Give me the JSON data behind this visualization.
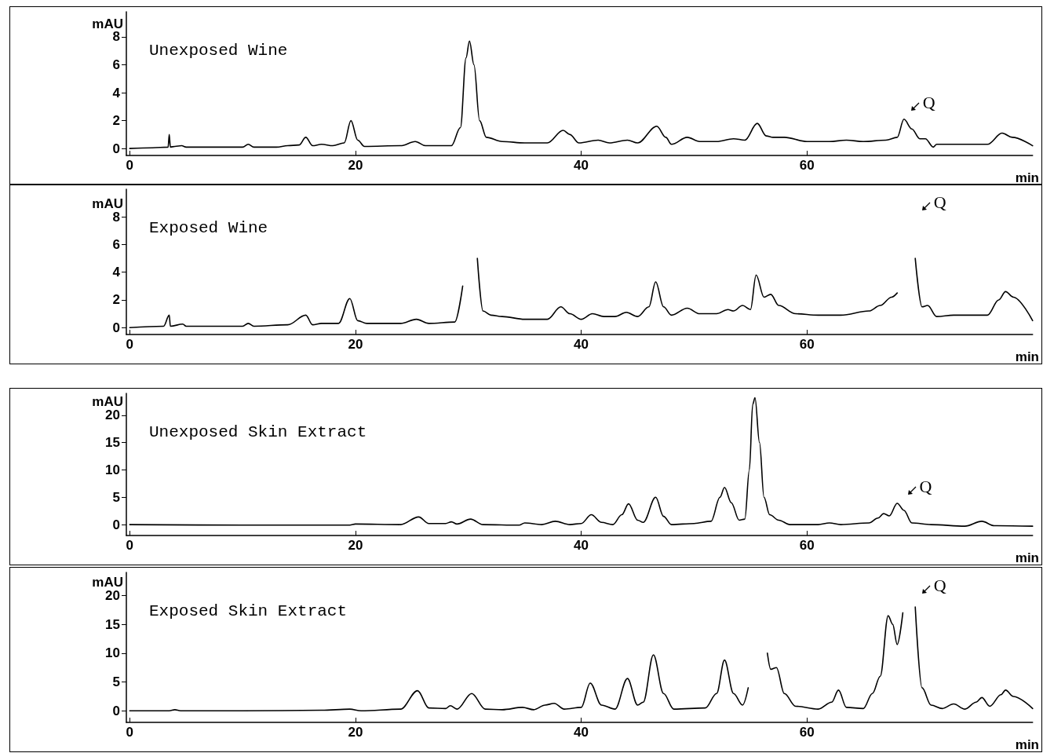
{
  "chart_data": [
    {
      "type": "line",
      "title": "Unexposed Wine",
      "xlabel": "min",
      "ylabel": "mAU",
      "color": "#000000",
      "marker": "none",
      "line_style": "solid",
      "xlim": [
        -0.3,
        80
      ],
      "xticks": [
        0,
        20,
        40,
        60
      ],
      "ylim": [
        -0.5,
        9.8
      ],
      "yticks": [
        0,
        2,
        4,
        6,
        8
      ],
      "x": [
        0,
        2,
        3.4,
        3.5,
        3.6,
        4,
        4.6,
        5,
        8,
        10,
        10.5,
        11,
        13,
        14,
        15,
        15.6,
        16.2,
        17,
        18,
        19,
        19.6,
        20.2,
        20.8,
        24,
        25.3,
        26.2,
        28.5,
        29.3,
        29.8,
        30.1,
        30.5,
        31,
        31.6,
        33,
        35,
        37,
        38.4,
        39,
        39.8,
        41.5,
        42.5,
        44.1,
        45,
        46.7,
        47.5,
        48,
        49.4,
        50.5,
        52,
        53.5,
        54.5,
        55.6,
        56.4,
        57,
        58,
        60,
        62,
        63.5,
        65,
        67,
        68,
        68.6,
        69.3,
        70,
        70.5,
        71.2,
        71.5,
        74,
        76,
        77.3,
        78.2,
        80
      ],
      "values": [
        0,
        0.05,
        0.1,
        1.0,
        0.1,
        0.15,
        0.2,
        0.1,
        0.1,
        0.1,
        0.3,
        0.1,
        0.1,
        0.2,
        0.25,
        0.8,
        0.2,
        0.3,
        0.2,
        0.4,
        2.0,
        0.6,
        0.15,
        0.2,
        0.5,
        0.2,
        0.2,
        1.5,
        6.5,
        7.7,
        6.0,
        2.0,
        0.8,
        0.5,
        0.4,
        0.4,
        1.3,
        1.0,
        0.4,
        0.6,
        0.4,
        0.6,
        0.4,
        1.6,
        0.8,
        0.3,
        0.8,
        0.5,
        0.5,
        0.7,
        0.6,
        1.8,
        0.9,
        0.8,
        0.8,
        0.5,
        0.5,
        0.6,
        0.5,
        0.6,
        0.8,
        2.1,
        1.4,
        0.7,
        0.7,
        0.1,
        0.3,
        0.3,
        0.3,
        1.1,
        0.8,
        0.2
      ],
      "annotations": [
        {
          "text": "Q",
          "x": 68.6,
          "y": 2.1
        }
      ]
    },
    {
      "type": "line",
      "title": "Exposed Wine",
      "xlabel": "min",
      "ylabel": "mAU",
      "color": "#000000",
      "marker": "none",
      "line_style": "solid",
      "xlim": [
        -0.3,
        80
      ],
      "xticks": [
        0,
        20,
        40,
        60
      ],
      "ylim": [
        -0.5,
        10
      ],
      "yticks": [
        0,
        2,
        4,
        6,
        8
      ],
      "x": [
        0,
        3,
        3.5,
        3.6,
        4.7,
        5,
        10,
        10.5,
        11,
        14,
        15.6,
        16.2,
        17,
        18.5,
        19.5,
        20.2,
        21,
        24,
        25.4,
        26.5,
        28.8,
        29.5,
        29.9,
        30.4,
        30.8,
        31.3,
        32,
        33,
        35,
        37,
        38.2,
        39,
        40,
        41,
        42,
        43,
        44,
        45,
        46,
        46.6,
        47.3,
        48,
        49.4,
        50.5,
        52,
        53,
        53.5,
        54.3,
        55,
        55.5,
        56.2,
        56.8,
        57.5,
        59,
        61,
        63,
        65.5,
        66.5,
        67.5,
        68,
        68.5,
        69.2,
        69.6,
        70.2,
        70.7,
        71.5,
        73,
        76,
        77,
        77.6,
        78.3,
        80
      ],
      "values": [
        0,
        0.1,
        0.9,
        0.1,
        0.25,
        0.1,
        0.1,
        0.3,
        0.1,
        0.2,
        0.9,
        0.2,
        0.3,
        0.3,
        2.1,
        0.5,
        0.3,
        0.3,
        0.6,
        0.3,
        0.4,
        3,
        null,
        null,
        5,
        1.2,
        0.9,
        0.8,
        0.6,
        0.6,
        1.5,
        1.0,
        0.6,
        1.0,
        0.8,
        0.8,
        1.1,
        0.8,
        1.5,
        3.3,
        1.5,
        0.9,
        1.4,
        1.0,
        1.0,
        1.3,
        1.2,
        1.6,
        1.3,
        3.8,
        2.2,
        2.4,
        1.6,
        1.0,
        0.9,
        0.9,
        1.2,
        1.6,
        2.2,
        2.5,
        null,
        null,
        5,
        1.5,
        1.6,
        0.8,
        0.9,
        0.9,
        2.0,
        2.6,
        2.2,
        0.5
      ],
      "annotations": [
        "Q"
      ]
    },
    {
      "type": "line",
      "title": "Unexposed Skin Extract",
      "xlabel": "min",
      "ylabel": "mAU",
      "color": "#000000",
      "marker": "none",
      "line_style": "solid",
      "xlim": [
        -0.3,
        80
      ],
      "xticks": [
        0,
        20,
        40,
        60
      ],
      "ylim": [
        -2,
        24
      ],
      "yticks": [
        0,
        5,
        10,
        15,
        20
      ],
      "x": [
        0,
        10,
        19.5,
        20,
        24,
        25.6,
        26.5,
        28,
        28.5,
        29,
        30.2,
        31.3,
        34.5,
        35,
        36.5,
        37.7,
        39,
        40,
        40.9,
        41.8,
        42.8,
        43.6,
        44.2,
        45,
        45.5,
        46.6,
        47.3,
        48,
        50,
        51.5,
        52.3,
        52.7,
        53.3,
        54,
        54.5,
        54.9,
        55.2,
        55.4,
        55.8,
        56.2,
        56.7,
        57.5,
        58.5,
        61,
        62,
        63,
        65.5,
        66.3,
        66.8,
        67.3,
        68,
        68.6,
        69.3,
        71,
        74,
        75.5,
        76.6,
        80
      ],
      "values": [
        0,
        -0.1,
        -0.1,
        0.1,
        0,
        1.4,
        0.2,
        0.2,
        0.5,
        0.1,
        1.0,
        0,
        -0.1,
        0.3,
        0,
        0.6,
        0,
        0.2,
        1.8,
        0.4,
        0,
        1.8,
        3.8,
        0.8,
        0.4,
        5.0,
        1.5,
        0,
        0.2,
        0.6,
        5,
        6.8,
        4,
        0.8,
        1,
        10,
        22,
        23.2,
        15,
        5,
        1.8,
        0.8,
        0,
        0,
        0.3,
        0,
        0.3,
        1.2,
        2.0,
        1.6,
        3.9,
        2.6,
        0.3,
        0,
        -0.3,
        0.6,
        -0.2,
        -0.3
      ],
      "annotations": [
        {
          "text": "Q",
          "x": 68.3,
          "y": 3.9
        }
      ]
    },
    {
      "type": "line",
      "title": "Exposed Skin Extract",
      "xlabel": "min",
      "ylabel": "mAU",
      "color": "#000000",
      "marker": "none",
      "line_style": "solid",
      "xlim": [
        -0.3,
        80
      ],
      "xticks": [
        0,
        20,
        40,
        60
      ],
      "ylim": [
        -2,
        24
      ],
      "yticks": [
        0,
        5,
        10,
        15,
        20
      ],
      "x": [
        0,
        3.5,
        4,
        4.5,
        10,
        17,
        19.5,
        20.5,
        24,
        25.5,
        26.5,
        28,
        28.4,
        29,
        30.3,
        31.5,
        33,
        34.8,
        35.8,
        36.8,
        37.6,
        38.5,
        40,
        40.8,
        41.8,
        43,
        44.1,
        45,
        45.5,
        46.4,
        47.3,
        48.2,
        51,
        52,
        52.7,
        53.5,
        54.3,
        54.8,
        55.2,
        56.2,
        56.5,
        56.8,
        57.3,
        58,
        59,
        61,
        62.2,
        62.8,
        63.5,
        65,
        65.8,
        66.5,
        67.2,
        67.6,
        68,
        68.5,
        69.1,
        69.6,
        70.2,
        71,
        72,
        73,
        74,
        75,
        75.5,
        76.2,
        77.2,
        77.6,
        78.3,
        80
      ],
      "values": [
        0,
        0,
        0.2,
        0,
        0,
        0.1,
        0.3,
        0,
        0.3,
        3.5,
        0.5,
        0.4,
        0.9,
        0.3,
        3.0,
        0.3,
        0.2,
        0.6,
        0.2,
        1,
        1.3,
        0.3,
        0.6,
        4.8,
        1,
        0.3,
        5.6,
        1,
        1.5,
        9.7,
        3,
        0.3,
        0.5,
        3,
        8.8,
        3,
        1,
        4,
        null,
        null,
        10,
        7.2,
        7.5,
        3,
        0.8,
        0.3,
        1.5,
        3.6,
        0.6,
        0.4,
        3.0,
        6,
        16.5,
        15,
        11.5,
        17,
        null,
        18,
        4,
        1,
        0.4,
        1.2,
        0.3,
        1.5,
        2.3,
        0.8,
        2.8,
        3.6,
        2.5,
        0.4
      ],
      "annotations": [
        "Q"
      ]
    }
  ]
}
